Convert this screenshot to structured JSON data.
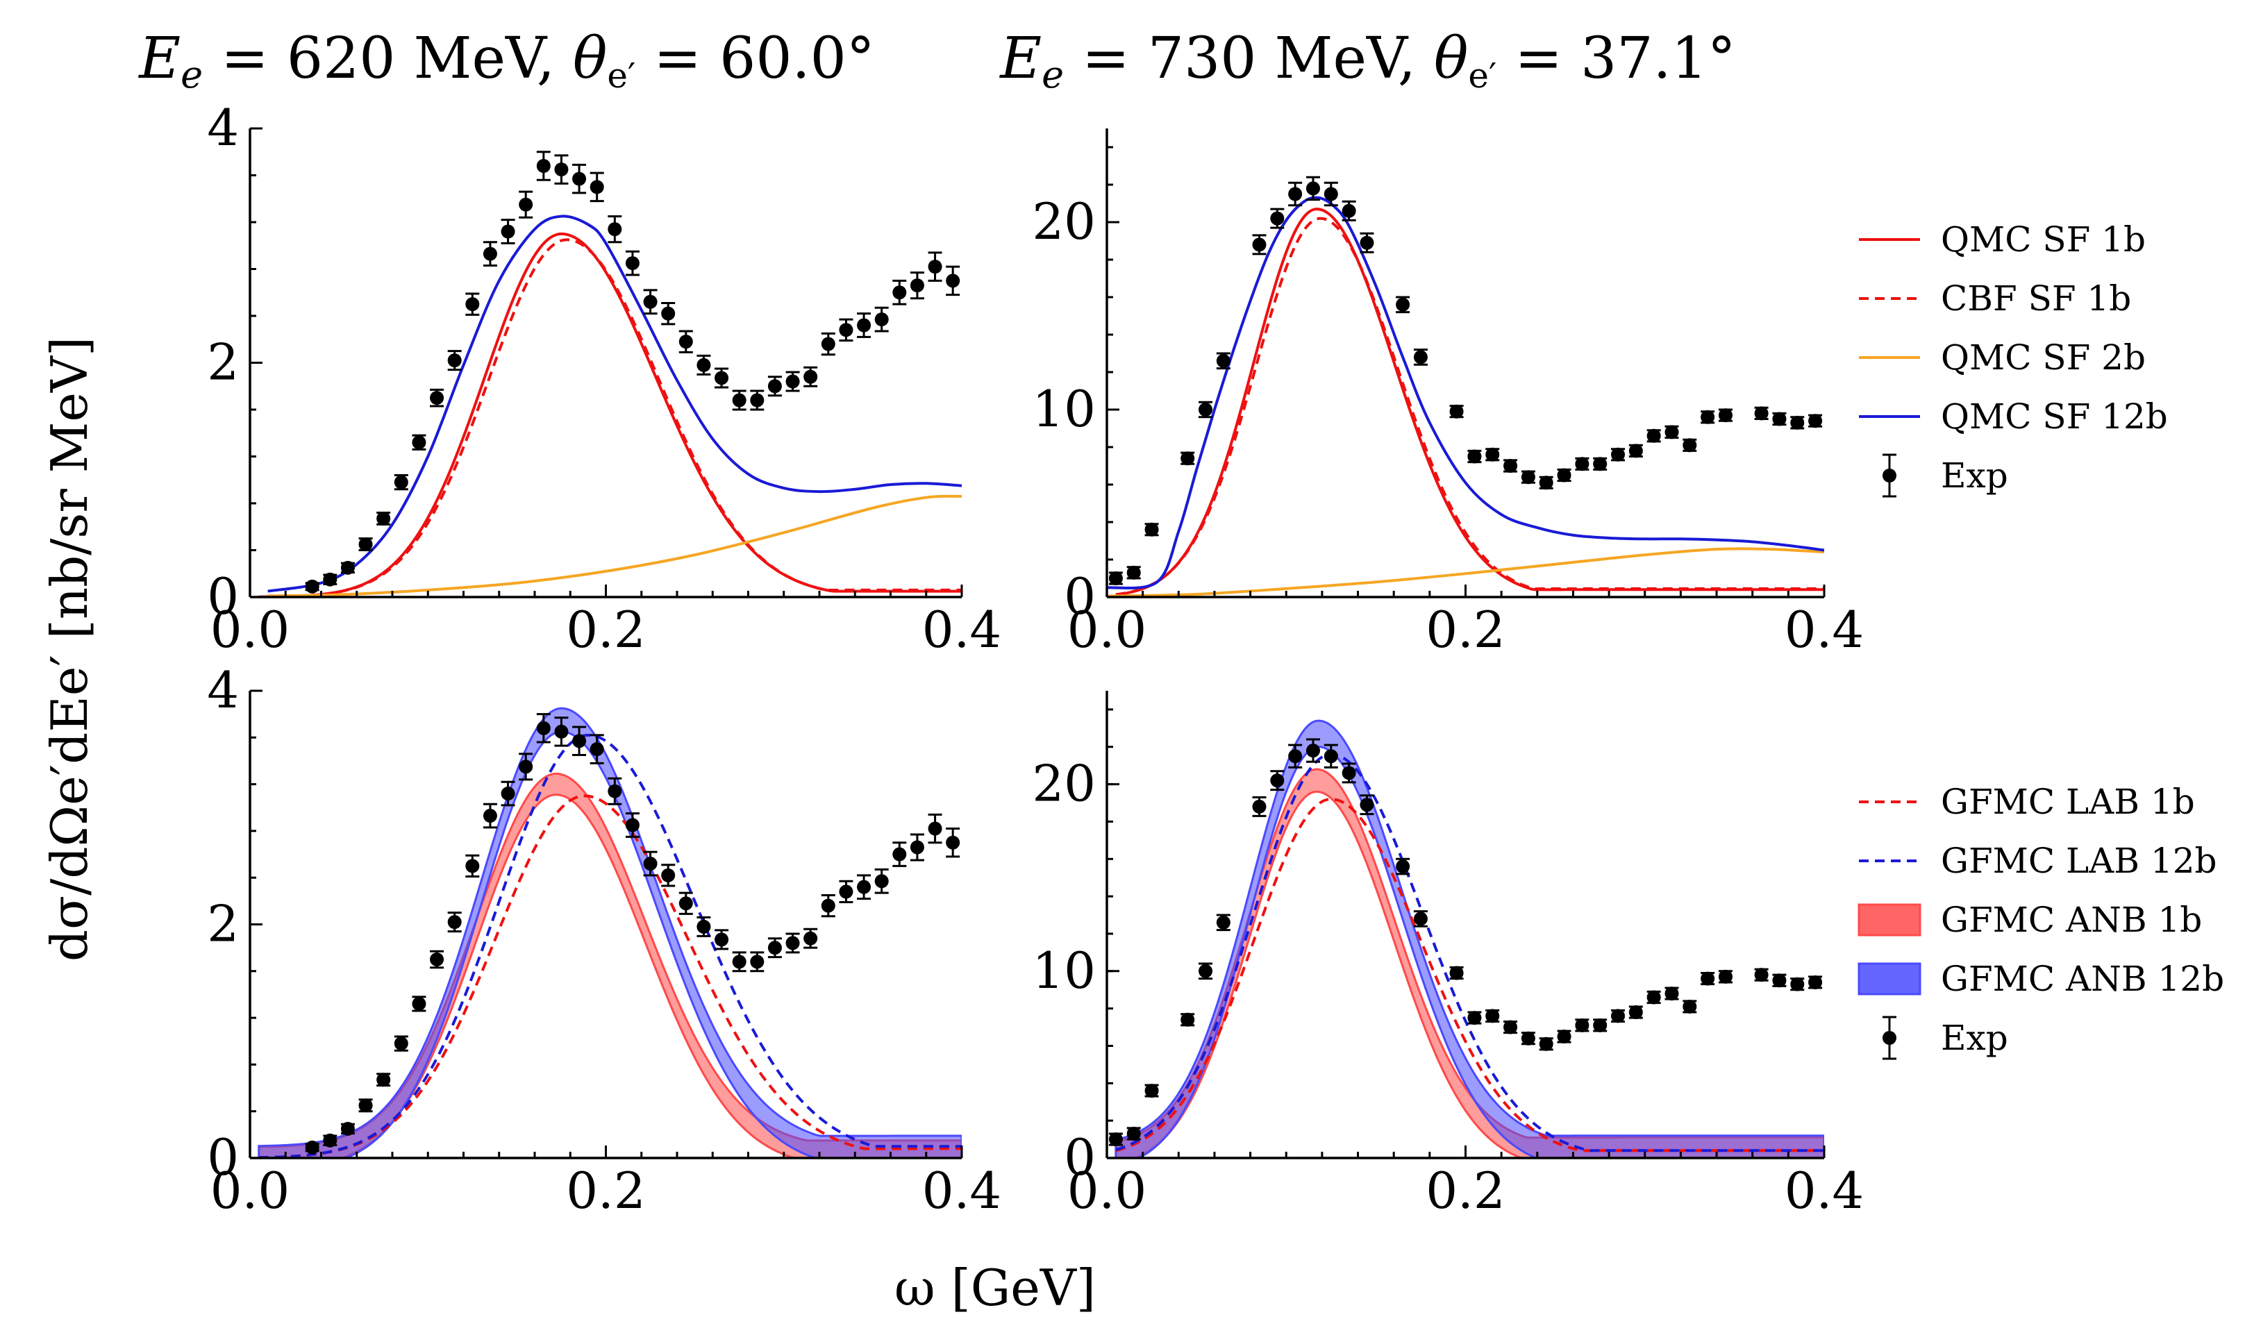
{
  "figure": {
    "shared_xlabel": "ω [GeV]",
    "shared_ylabel": "dσ/dΩe′dEe′ [nb/sr MeV]"
  },
  "colors": {
    "red": "#ee1111",
    "orange": "#f5a623",
    "blue": "#1a1ad6",
    "band_red": "#ff4a4a",
    "band_blue": "#4a4aff",
    "exp": "#000000"
  },
  "chart_data": [
    {
      "id": "top-left",
      "type": "line",
      "title": "Ee = 620 MeV, θe′ = 60.0°",
      "title_parts": {
        "e_label": "E",
        "e_sub": "e",
        "e_value": " = 620 MeV, ",
        "theta": "θ",
        "theta_sub": "e′",
        "angle_value": " = 60.0°"
      },
      "xlim": [
        0,
        0.4
      ],
      "ylim": [
        0,
        4
      ],
      "xticks": [
        0.0,
        0.2,
        0.4
      ],
      "xtick_labels": [
        "0.0",
        "0.2",
        "0.4"
      ],
      "yticks": [
        0,
        2,
        4
      ],
      "ytick_labels": [
        "0",
        "2",
        "4"
      ],
      "series": [
        {
          "name": "QMC SF 1b",
          "color": "red",
          "style": "solid",
          "peak": {
            "x": 0.175,
            "y": 3.1,
            "wl": 0.043,
            "wr": 0.053
          },
          "tail": [
            0.3,
            0.05
          ]
        },
        {
          "name": "CBF SF 1b",
          "color": "red",
          "style": "dashed",
          "peak": {
            "x": 0.178,
            "y": 3.05,
            "wl": 0.044,
            "wr": 0.052
          },
          "tail": [
            0.3,
            0.06
          ]
        },
        {
          "name": "QMC SF 2b",
          "color": "orange",
          "style": "solid",
          "x": [
            0.01,
            0.05,
            0.1,
            0.15,
            0.2,
            0.25,
            0.3,
            0.35,
            0.38,
            0.4
          ],
          "y": [
            0.01,
            0.02,
            0.06,
            0.12,
            0.22,
            0.36,
            0.55,
            0.76,
            0.85,
            0.86
          ]
        },
        {
          "name": "QMC SF 12b",
          "color": "blue",
          "style": "solid",
          "x": [
            0.01,
            0.04,
            0.06,
            0.08,
            0.1,
            0.12,
            0.14,
            0.16,
            0.175,
            0.19,
            0.2,
            0.22,
            0.24,
            0.26,
            0.28,
            0.3,
            0.32,
            0.34,
            0.36,
            0.38,
            0.4
          ],
          "y": [
            0.05,
            0.12,
            0.28,
            0.62,
            1.2,
            1.98,
            2.7,
            3.14,
            3.25,
            3.18,
            3.02,
            2.45,
            1.85,
            1.35,
            1.05,
            0.93,
            0.9,
            0.92,
            0.96,
            0.97,
            0.95
          ]
        }
      ],
      "exp": {
        "name": "Exp",
        "x": [
          0.035,
          0.045,
          0.055,
          0.065,
          0.075,
          0.085,
          0.095,
          0.105,
          0.115,
          0.125,
          0.135,
          0.145,
          0.155,
          0.165,
          0.175,
          0.185,
          0.195,
          0.205,
          0.215,
          0.225,
          0.235,
          0.245,
          0.255,
          0.265,
          0.275,
          0.285,
          0.295,
          0.305,
          0.315,
          0.325,
          0.335,
          0.345,
          0.355,
          0.365,
          0.375,
          0.385,
          0.395
        ],
        "y": [
          0.09,
          0.15,
          0.25,
          0.45,
          0.67,
          0.98,
          1.32,
          1.7,
          2.02,
          2.5,
          2.93,
          3.12,
          3.35,
          3.68,
          3.65,
          3.57,
          3.5,
          3.14,
          2.85,
          2.52,
          2.42,
          2.18,
          1.98,
          1.87,
          1.68,
          1.68,
          1.8,
          1.84,
          1.88,
          2.16,
          2.28,
          2.32,
          2.37,
          2.6,
          2.66,
          2.82,
          2.7
        ],
        "err": [
          0.03,
          0.04,
          0.04,
          0.05,
          0.05,
          0.06,
          0.06,
          0.07,
          0.08,
          0.09,
          0.1,
          0.1,
          0.11,
          0.12,
          0.12,
          0.12,
          0.12,
          0.11,
          0.1,
          0.1,
          0.09,
          0.09,
          0.08,
          0.08,
          0.08,
          0.08,
          0.08,
          0.08,
          0.08,
          0.09,
          0.09,
          0.1,
          0.1,
          0.1,
          0.11,
          0.12,
          0.12
        ]
      }
    },
    {
      "id": "top-right",
      "type": "line",
      "title": "Ee = 730 MeV, θe′ = 37.1°",
      "title_parts": {
        "e_label": "E",
        "e_sub": "e",
        "e_value": " = 730 MeV, ",
        "theta": "θ",
        "theta_sub": "e′",
        "angle_value": " = 37.1°"
      },
      "xlim": [
        0,
        0.4
      ],
      "ylim": [
        0,
        25
      ],
      "xticks": [
        0.0,
        0.2,
        0.4
      ],
      "xtick_labels": [
        "0.0",
        "0.2",
        "0.4"
      ],
      "yticks": [
        0,
        10,
        20
      ],
      "ytick_labels": [
        "0",
        "10",
        "20"
      ],
      "series": [
        {
          "name": "QMC SF 1b",
          "color": "red",
          "style": "solid",
          "peak": {
            "x": 0.117,
            "y": 20.7,
            "wl": 0.035,
            "wr": 0.043
          },
          "tail": [
            0.5,
            0.4
          ]
        },
        {
          "name": "CBF SF 1b",
          "color": "red",
          "style": "dashed",
          "peak": {
            "x": 0.119,
            "y": 20.2,
            "wl": 0.036,
            "wr": 0.043
          },
          "tail": [
            0.5,
            0.45
          ]
        },
        {
          "name": "QMC SF 2b",
          "color": "orange",
          "style": "solid",
          "x": [
            0.0,
            0.05,
            0.1,
            0.15,
            0.2,
            0.25,
            0.3,
            0.34,
            0.37,
            0.4
          ],
          "y": [
            0.05,
            0.15,
            0.45,
            0.8,
            1.25,
            1.75,
            2.25,
            2.55,
            2.55,
            2.4
          ]
        },
        {
          "name": "QMC SF 12b",
          "color": "blue",
          "style": "solid",
          "x": [
            0.0,
            0.028,
            0.04,
            0.05,
            0.06,
            0.07,
            0.08,
            0.09,
            0.1,
            0.11,
            0.118,
            0.126,
            0.135,
            0.15,
            0.165,
            0.18,
            0.2,
            0.22,
            0.24,
            0.26,
            0.28,
            0.3,
            0.32,
            0.34,
            0.36,
            0.38,
            0.4
          ],
          "y": [
            0.5,
            0.8,
            3.5,
            6.8,
            10.0,
            13.0,
            15.8,
            18.3,
            20.1,
            21.1,
            21.3,
            20.9,
            19.8,
            16.6,
            12.8,
            9.3,
            6.1,
            4.4,
            3.7,
            3.3,
            3.15,
            3.1,
            3.1,
            3.05,
            2.95,
            2.75,
            2.5
          ]
        }
      ],
      "exp": {
        "name": "Exp",
        "x": [
          0.005,
          0.015,
          0.025,
          0.045,
          0.055,
          0.065,
          0.085,
          0.095,
          0.105,
          0.115,
          0.125,
          0.135,
          0.145,
          0.165,
          0.175,
          0.195,
          0.205,
          0.215,
          0.225,
          0.235,
          0.245,
          0.255,
          0.265,
          0.275,
          0.285,
          0.295,
          0.305,
          0.315,
          0.325,
          0.335,
          0.345,
          0.365,
          0.375,
          0.385,
          0.395
        ],
        "y": [
          1.0,
          1.3,
          3.6,
          7.4,
          10.0,
          12.6,
          18.8,
          20.2,
          21.5,
          21.8,
          21.5,
          20.6,
          18.9,
          15.6,
          12.8,
          9.9,
          7.5,
          7.6,
          7.0,
          6.4,
          6.1,
          6.5,
          7.1,
          7.1,
          7.6,
          7.8,
          8.6,
          8.8,
          8.1,
          9.6,
          9.7,
          9.8,
          9.5,
          9.3,
          9.4
        ],
        "err": [
          0.3,
          0.3,
          0.3,
          0.3,
          0.4,
          0.4,
          0.5,
          0.5,
          0.6,
          0.6,
          0.6,
          0.5,
          0.5,
          0.4,
          0.4,
          0.3,
          0.3,
          0.3,
          0.3,
          0.3,
          0.3,
          0.3,
          0.3,
          0.3,
          0.3,
          0.3,
          0.3,
          0.3,
          0.3,
          0.3,
          0.3,
          0.3,
          0.3,
          0.3,
          0.3
        ]
      }
    },
    {
      "id": "bottom-left",
      "type": "line",
      "xlim": [
        0,
        0.4
      ],
      "ylim": [
        0,
        4
      ],
      "xticks": [
        0.0,
        0.2,
        0.4
      ],
      "xtick_labels": [
        "0.0",
        "0.2",
        "0.4"
      ],
      "yticks": [
        0,
        2,
        4
      ],
      "ytick_labels": [
        "0",
        "2",
        "4"
      ],
      "series": [
        {
          "name": "GFMC ANB 1b",
          "color": "band_red",
          "style": "band",
          "peak": {
            "x": 0.172,
            "y": 3.2,
            "wl": 0.045,
            "wr": 0.05
          },
          "tail": [
            0.15,
            0.06
          ],
          "band_width": 0.09
        },
        {
          "name": "GFMC ANB 12b",
          "color": "band_blue",
          "style": "band",
          "peak": {
            "x": 0.175,
            "y": 3.75,
            "wl": 0.045,
            "wr": 0.053
          },
          "tail": [
            0.25,
            0.09
          ],
          "band_width": 0.1
        },
        {
          "name": "GFMC LAB 1b",
          "color": "red",
          "style": "dashed",
          "peak": {
            "x": 0.188,
            "y": 3.1,
            "wl": 0.05,
            "wr": 0.058
          },
          "tail": [
            0.25,
            0.08
          ]
        },
        {
          "name": "GFMC LAB 12b",
          "color": "blue",
          "style": "dashed",
          "peak": {
            "x": 0.19,
            "y": 3.62,
            "wl": 0.05,
            "wr": 0.06
          },
          "tail": [
            0.4,
            0.1
          ]
        }
      ],
      "exp": {
        "name": "Exp",
        "x": [
          0.035,
          0.045,
          0.055,
          0.065,
          0.075,
          0.085,
          0.095,
          0.105,
          0.115,
          0.125,
          0.135,
          0.145,
          0.155,
          0.165,
          0.175,
          0.185,
          0.195,
          0.205,
          0.215,
          0.225,
          0.235,
          0.245,
          0.255,
          0.265,
          0.275,
          0.285,
          0.295,
          0.305,
          0.315,
          0.325,
          0.335,
          0.345,
          0.355,
          0.365,
          0.375,
          0.385,
          0.395
        ],
        "y": [
          0.09,
          0.15,
          0.25,
          0.45,
          0.67,
          0.98,
          1.32,
          1.7,
          2.02,
          2.5,
          2.93,
          3.12,
          3.35,
          3.68,
          3.65,
          3.57,
          3.5,
          3.14,
          2.85,
          2.52,
          2.42,
          2.18,
          1.98,
          1.87,
          1.68,
          1.68,
          1.8,
          1.84,
          1.88,
          2.16,
          2.28,
          2.32,
          2.37,
          2.6,
          2.66,
          2.82,
          2.7
        ],
        "err": [
          0.03,
          0.04,
          0.04,
          0.05,
          0.05,
          0.06,
          0.06,
          0.07,
          0.08,
          0.09,
          0.1,
          0.1,
          0.11,
          0.12,
          0.12,
          0.12,
          0.12,
          0.11,
          0.1,
          0.1,
          0.09,
          0.09,
          0.08,
          0.08,
          0.08,
          0.08,
          0.08,
          0.08,
          0.08,
          0.09,
          0.09,
          0.1,
          0.1,
          0.1,
          0.11,
          0.12,
          0.12
        ]
      }
    },
    {
      "id": "bottom-right",
      "type": "line",
      "xlim": [
        0,
        0.4
      ],
      "ylim": [
        0,
        25
      ],
      "xticks": [
        0.0,
        0.2,
        0.4
      ],
      "xtick_labels": [
        "0.0",
        "0.2",
        "0.4"
      ],
      "yticks": [
        0,
        10,
        20
      ],
      "ytick_labels": [
        "0",
        "10",
        "20"
      ],
      "series": [
        {
          "name": "GFMC ANB 1b",
          "color": "band_red",
          "style": "band",
          "peak": {
            "x": 0.117,
            "y": 20.2,
            "wl": 0.038,
            "wr": 0.043
          },
          "tail": [
            0.35,
            0.5
          ],
          "band_width": 0.6
        },
        {
          "name": "GFMC ANB 12b",
          "color": "band_blue",
          "style": "band",
          "peak": {
            "x": 0.118,
            "y": 22.7,
            "wl": 0.038,
            "wr": 0.046
          },
          "tail": [
            0.6,
            0.5
          ],
          "band_width": 0.7
        },
        {
          "name": "GFMC LAB 1b",
          "color": "red",
          "style": "dashed",
          "peak": {
            "x": 0.125,
            "y": 19.2,
            "wl": 0.043,
            "wr": 0.05
          },
          "tail": [
            0.5,
            0.4
          ]
        },
        {
          "name": "GFMC LAB 12b",
          "color": "blue",
          "style": "dashed",
          "peak": {
            "x": 0.125,
            "y": 21.6,
            "wl": 0.043,
            "wr": 0.051
          },
          "tail": [
            0.7,
            0.4
          ]
        }
      ],
      "exp": {
        "name": "Exp",
        "x": [
          0.005,
          0.015,
          0.025,
          0.045,
          0.055,
          0.065,
          0.085,
          0.095,
          0.105,
          0.115,
          0.125,
          0.135,
          0.145,
          0.165,
          0.175,
          0.195,
          0.205,
          0.215,
          0.225,
          0.235,
          0.245,
          0.255,
          0.265,
          0.275,
          0.285,
          0.295,
          0.305,
          0.315,
          0.325,
          0.335,
          0.345,
          0.365,
          0.375,
          0.385,
          0.395
        ],
        "y": [
          1.0,
          1.3,
          3.6,
          7.4,
          10.0,
          12.6,
          18.8,
          20.2,
          21.5,
          21.8,
          21.5,
          20.6,
          18.9,
          15.6,
          12.8,
          9.9,
          7.5,
          7.6,
          7.0,
          6.4,
          6.1,
          6.5,
          7.1,
          7.1,
          7.6,
          7.8,
          8.6,
          8.8,
          8.1,
          9.6,
          9.7,
          9.8,
          9.5,
          9.3,
          9.4
        ],
        "err": [
          0.3,
          0.3,
          0.3,
          0.3,
          0.4,
          0.4,
          0.5,
          0.5,
          0.6,
          0.6,
          0.6,
          0.5,
          0.5,
          0.4,
          0.4,
          0.3,
          0.3,
          0.3,
          0.3,
          0.3,
          0.3,
          0.3,
          0.3,
          0.3,
          0.3,
          0.3,
          0.3,
          0.3,
          0.3,
          0.3,
          0.3,
          0.3,
          0.3,
          0.3,
          0.3
        ]
      }
    }
  ],
  "legends": {
    "top": [
      {
        "label": "QMC SF 1b",
        "kind": "line",
        "color": "red",
        "style": "solid"
      },
      {
        "label": "CBF SF 1b",
        "kind": "line",
        "color": "red",
        "style": "dashed"
      },
      {
        "label": "QMC SF 2b",
        "kind": "line",
        "color": "orange",
        "style": "solid"
      },
      {
        "label": "QMC SF 12b",
        "kind": "line",
        "color": "blue",
        "style": "solid"
      },
      {
        "label": "Exp",
        "kind": "point",
        "color": "exp",
        "style": "solid"
      }
    ],
    "bottom": [
      {
        "label": "GFMC LAB 1b",
        "kind": "line",
        "color": "red",
        "style": "dashed"
      },
      {
        "label": "GFMC LAB 12b",
        "kind": "line",
        "color": "blue",
        "style": "dashed"
      },
      {
        "label": "GFMC ANB 1b",
        "kind": "patch",
        "color": "band_red",
        "style": "solid"
      },
      {
        "label": "GFMC ANB 12b",
        "kind": "patch",
        "color": "band_blue",
        "style": "solid"
      },
      {
        "label": "Exp",
        "kind": "point",
        "color": "exp",
        "style": "solid"
      }
    ]
  }
}
